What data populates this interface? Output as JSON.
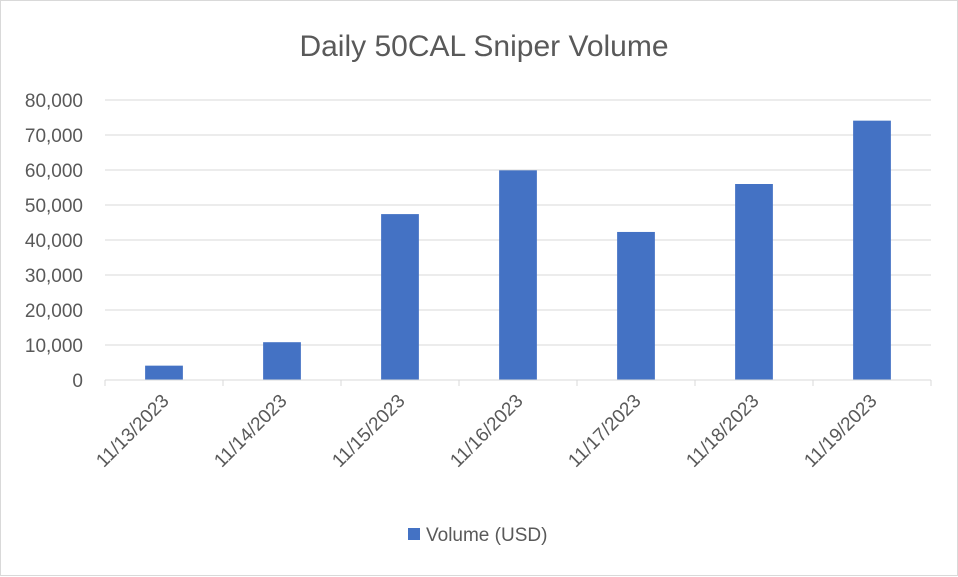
{
  "chart_data": {
    "type": "bar",
    "title": "Daily 50CAL Sniper Volume",
    "xlabel": "",
    "ylabel": "",
    "categories": [
      "11/13/2023",
      "11/14/2023",
      "11/15/2023",
      "11/16/2023",
      "11/17/2023",
      "11/18/2023",
      "11/19/2023"
    ],
    "series": [
      {
        "name": "Volume (USD)",
        "color": "#4472c4",
        "values": [
          4100,
          10800,
          47400,
          59900,
          42300,
          56000,
          74100
        ]
      }
    ],
    "ylim": [
      0,
      80000
    ],
    "yticks": [
      0,
      10000,
      20000,
      30000,
      40000,
      50000,
      60000,
      70000,
      80000
    ],
    "ytick_labels": [
      "0",
      "10,000",
      "20,000",
      "30,000",
      "40,000",
      "50,000",
      "60,000",
      "70,000",
      "80,000"
    ],
    "grid": true,
    "legend_position": "bottom"
  }
}
